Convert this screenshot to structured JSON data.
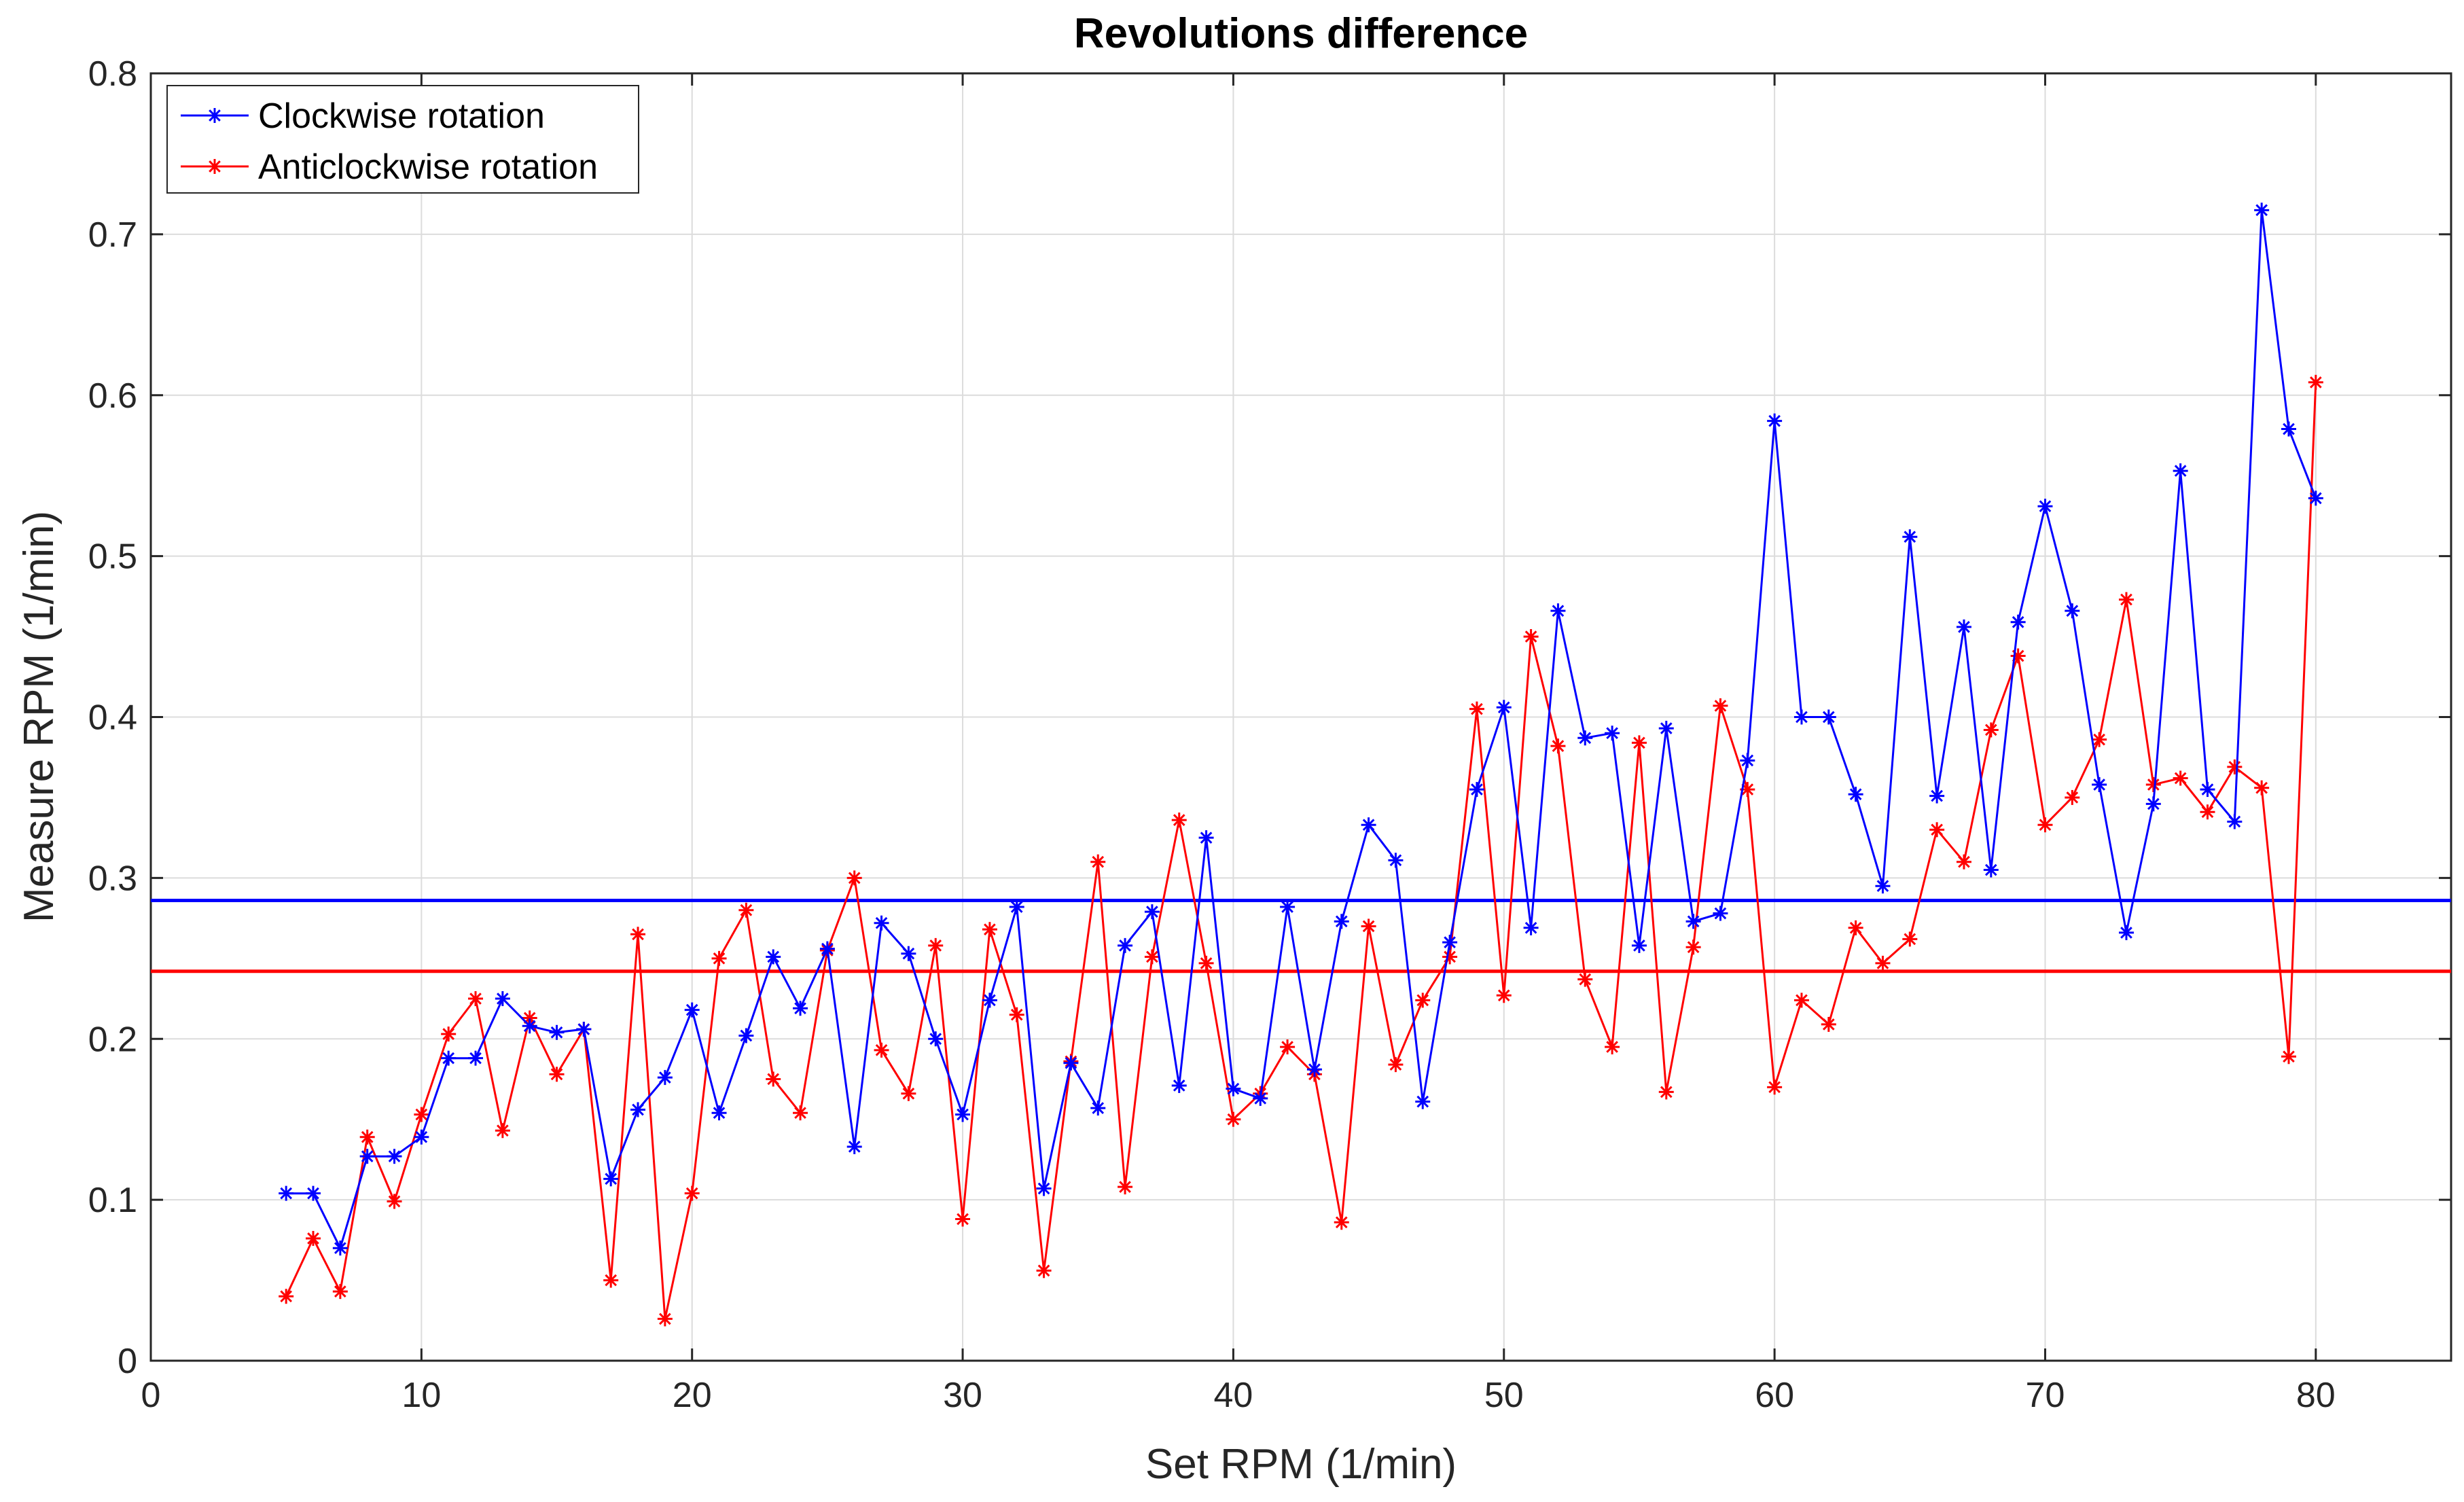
{
  "chart_data": {
    "type": "line",
    "title": "Revolutions difference",
    "xlabel": "Set RPM (1/min)",
    "ylabel": "Measure RPM (1/min)",
    "xlim": [
      0,
      85
    ],
    "ylim": [
      0,
      0.8
    ],
    "xticks": [
      0,
      10,
      20,
      30,
      40,
      50,
      60,
      70,
      80
    ],
    "yticks": [
      0,
      0.1,
      0.2,
      0.3,
      0.4,
      0.5,
      0.6,
      0.7,
      0.8
    ],
    "xtick_labels": [
      "0",
      "10",
      "20",
      "30",
      "40",
      "50",
      "60",
      "70",
      "80"
    ],
    "ytick_labels": [
      "0",
      "0.1",
      "0.2",
      "0.3",
      "0.4",
      "0.5",
      "0.6",
      "0.7",
      "0.8"
    ],
    "grid": true,
    "legend_position": "top-left",
    "x": [
      5,
      6,
      7,
      8,
      9,
      10,
      11,
      12,
      13,
      14,
      15,
      16,
      17,
      18,
      19,
      20,
      21,
      22,
      23,
      24,
      25,
      26,
      27,
      28,
      29,
      30,
      31,
      32,
      33,
      34,
      35,
      36,
      37,
      38,
      39,
      40,
      41,
      42,
      43,
      44,
      45,
      46,
      47,
      48,
      49,
      50,
      51,
      52,
      53,
      54,
      55,
      56,
      57,
      58,
      59,
      60,
      61,
      62,
      63,
      64,
      65,
      66,
      67,
      68,
      69,
      70,
      71,
      72,
      73,
      74,
      75,
      76,
      77,
      78,
      79,
      80
    ],
    "series": [
      {
        "name": "Clockwise rotation",
        "color": "#0000ff",
        "marker": "asterisk",
        "values": [
          0.104,
          0.104,
          0.07,
          0.127,
          0.127,
          0.139,
          0.188,
          0.188,
          0.225,
          0.208,
          0.204,
          0.206,
          0.113,
          0.156,
          0.176,
          0.218,
          0.154,
          0.202,
          0.251,
          0.219,
          0.256,
          0.133,
          0.272,
          0.253,
          0.2,
          0.153,
          0.224,
          0.282,
          0.107,
          0.185,
          0.157,
          0.258,
          0.279,
          0.171,
          0.325,
          0.169,
          0.163,
          0.282,
          0.181,
          0.273,
          0.333,
          0.311,
          0.161,
          0.26,
          0.355,
          0.406,
          0.269,
          0.466,
          0.387,
          0.39,
          0.258,
          0.393,
          0.273,
          0.278,
          0.373,
          0.584,
          0.4,
          0.4,
          0.352,
          0.295,
          0.512,
          0.351,
          0.456,
          0.305,
          0.459,
          0.531,
          0.466,
          0.358,
          0.266,
          0.346,
          0.553,
          0.355,
          0.335,
          0.715,
          0.579,
          0.536
        ],
        "mean": 0.286
      },
      {
        "name": "Anticlockwise rotation",
        "color": "#ff0000",
        "marker": "asterisk",
        "values": [
          0.04,
          0.076,
          0.043,
          0.139,
          0.099,
          0.153,
          0.203,
          0.225,
          0.143,
          0.213,
          0.178,
          0.206,
          0.05,
          0.265,
          0.026,
          0.104,
          0.25,
          0.28,
          0.175,
          0.154,
          0.255,
          0.3,
          0.193,
          0.166,
          0.258,
          0.088,
          0.268,
          0.215,
          0.056,
          0.186,
          0.31,
          0.108,
          0.251,
          0.336,
          0.247,
          0.15,
          0.166,
          0.195,
          0.178,
          0.086,
          0.27,
          0.184,
          0.224,
          0.251,
          0.405,
          0.227,
          0.45,
          0.382,
          0.237,
          0.195,
          0.384,
          0.167,
          0.257,
          0.407,
          0.355,
          0.17,
          0.224,
          0.209,
          0.269,
          0.247,
          0.262,
          0.33,
          0.31,
          0.392,
          0.438,
          0.333,
          0.35,
          0.386,
          0.473,
          0.358,
          0.362,
          0.341,
          0.369,
          0.356,
          0.189,
          0.608
        ],
        "mean": 0.242
      }
    ]
  }
}
